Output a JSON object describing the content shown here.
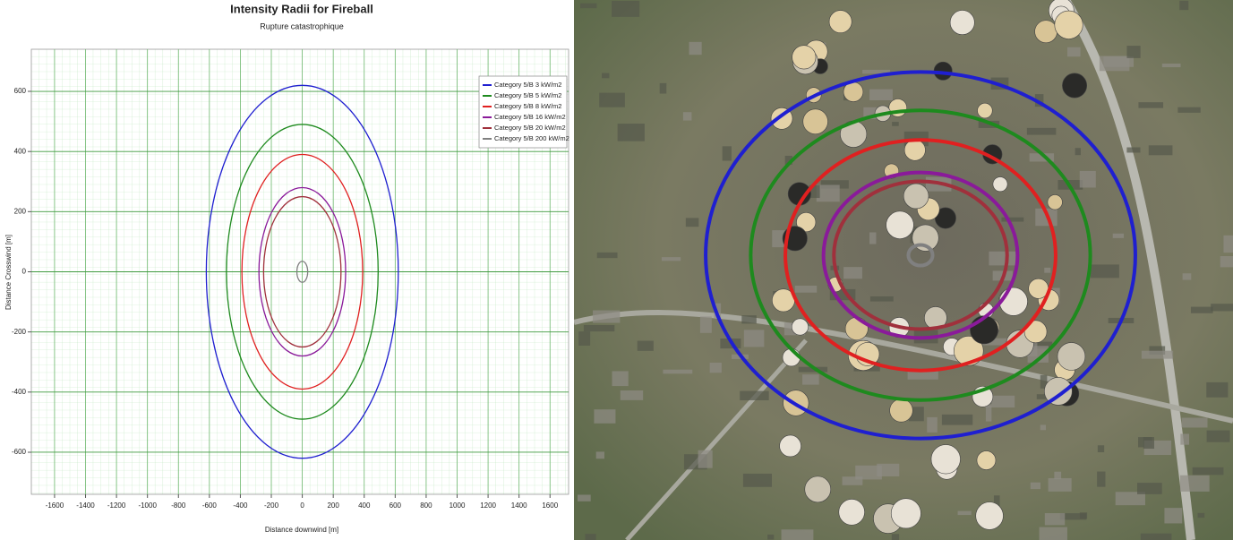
{
  "chart_data": {
    "type": "circle",
    "title": "Intensity Radii for Fireball",
    "subtitle": "Rupture catastrophique",
    "x_label": "Distance downwind [m]",
    "y_label": "Distance Crosswind [m]",
    "xlim": [
      -1750,
      1720
    ],
    "ylim": [
      -740,
      740
    ],
    "xticks": [
      -1600,
      -1400,
      -1200,
      -1000,
      -800,
      -600,
      -400,
      -200,
      0,
      200,
      400,
      600,
      800,
      1000,
      1200,
      1400,
      1600
    ],
    "yticks": [
      -600,
      -400,
      -200,
      0,
      200,
      400,
      600
    ],
    "grid": true,
    "legend": "upper right",
    "series": [
      {
        "name": "Category 5/B 3 kW/m2",
        "color": "#1f1fd0",
        "values": [
          620
        ]
      },
      {
        "name": "Category 5/B 5 kW/m2",
        "color": "#1e8a1e",
        "values": [
          490
        ]
      },
      {
        "name": "Category 5/B 8 kW/m2",
        "color": "#e02020",
        "values": [
          390
        ]
      },
      {
        "name": "Category 5/B 16 kW/m2",
        "color": "#8a1a9a",
        "values": [
          280
        ]
      },
      {
        "name": "Category 5/B 20 kW/m2",
        "color": "#a0303c",
        "values": [
          250
        ]
      },
      {
        "name": "Category 5/B 200 kW/m2",
        "color": "#808080",
        "values": [
          35
        ]
      }
    ]
  }
}
